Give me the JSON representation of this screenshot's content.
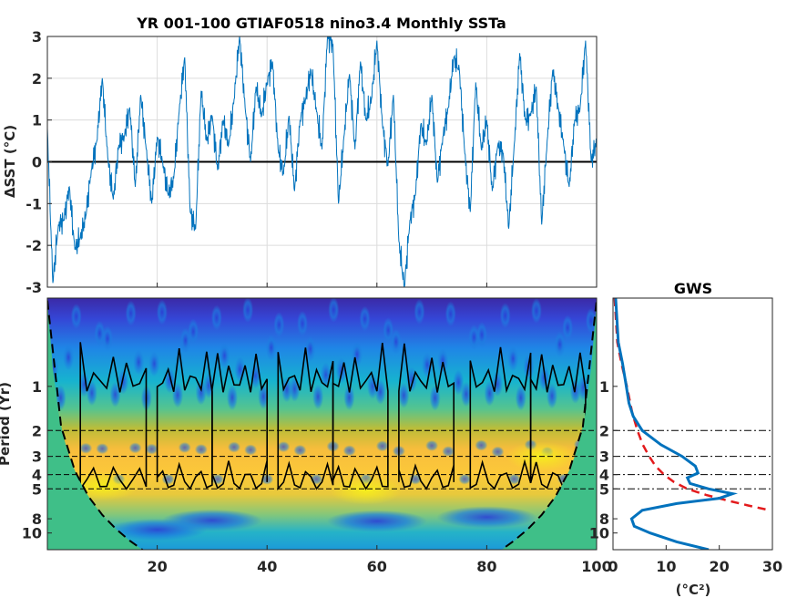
{
  "chart_data": [
    {
      "type": "line",
      "title": "YR 001-100 GTIAF0518 nino3.4 Monthly SSTa",
      "ylabel": "ΔSST (°C)",
      "xlim": [
        0,
        100
      ],
      "ylim": [
        -3,
        3
      ],
      "yticks": [
        "3",
        "2",
        "1",
        "0",
        "-1",
        "-2",
        "-3"
      ],
      "grid": true,
      "series": [
        {
          "color": "#0072bd",
          "x": [
            0,
            1,
            2,
            3,
            4,
            5,
            6,
            7,
            8,
            9,
            10,
            11,
            12,
            13,
            14,
            15,
            16,
            17,
            18,
            19,
            20,
            21,
            22,
            23,
            24,
            25,
            26,
            27,
            28,
            29,
            30,
            31,
            32,
            33,
            34,
            35,
            36,
            37,
            38,
            39,
            40,
            41,
            42,
            43,
            44,
            45,
            46,
            47,
            48,
            49,
            50,
            51,
            52,
            53,
            54,
            55,
            56,
            57,
            58,
            59,
            60,
            61,
            62,
            63,
            64,
            65,
            66,
            67,
            68,
            69,
            70,
            71,
            72,
            73,
            74,
            75,
            76,
            77,
            78,
            79,
            80,
            81,
            82,
            83,
            84,
            85,
            86,
            87,
            88,
            89,
            90,
            91,
            92,
            93,
            94,
            95,
            96,
            97,
            98,
            99,
            100
          ],
          "y": [
            0.8,
            -2.9,
            -1.5,
            -1.4,
            -0.6,
            -2.1,
            -1.8,
            -1.3,
            -0.2,
            0.5,
            2.0,
            0.1,
            -0.9,
            0.4,
            0.6,
            1.3,
            -0.6,
            1.6,
            0.3,
            -1.0,
            0.6,
            0.0,
            -0.8,
            -0.4,
            1.2,
            2.5,
            -1.2,
            -1.6,
            1.7,
            0.5,
            1.1,
            -0.2,
            1.0,
            0.4,
            1.5,
            3.0,
            1.3,
            0.0,
            1.8,
            1.1,
            1.9,
            2.4,
            0.3,
            -0.3,
            1.1,
            -0.7,
            1.0,
            1.5,
            2.2,
            1.2,
            0.3,
            3.0,
            2.8,
            -1.0,
            0.6,
            2.1,
            0.3,
            2.4,
            1.0,
            1.5,
            2.9,
            0.9,
            -0.1,
            1.6,
            -1.9,
            -3.0,
            -1.4,
            -0.8,
            0.9,
            0.4,
            1.6,
            -0.5,
            0.6,
            1.3,
            2.5,
            2.2,
            0.2,
            -1.2,
            1.9,
            0.3,
            1.0,
            -0.7,
            0.4,
            0.2,
            -1.6,
            0.4,
            2.6,
            1.0,
            1.1,
            1.8,
            -1.5,
            0.5,
            2.2,
            1.3,
            0.4,
            -0.6,
            1.0,
            1.3,
            2.9,
            0.0,
            0.5
          ]
        }
      ],
      "zero_line": 0
    },
    {
      "type": "heatmap",
      "title": "",
      "ylabel": "Period (Yr)",
      "xlim": [
        0,
        100
      ],
      "xticks": [
        "20",
        "40",
        "60",
        "80",
        "100"
      ],
      "yticks": [
        "1",
        "2",
        "3",
        "4",
        "5",
        "8",
        "10"
      ],
      "yticks_values": [
        1,
        2,
        3,
        4,
        5,
        8,
        10
      ],
      "ylim": [
        0.25,
        13
      ],
      "log_y": true,
      "reference_periods": [
        2,
        3,
        4,
        5
      ],
      "colormap": "parula",
      "cone_of_influence": true,
      "significance_contours": true
    },
    {
      "type": "line",
      "title": "GWS",
      "xlabel": "(°C²)",
      "xlim": [
        0,
        30
      ],
      "xticks": [
        "0",
        "10",
        "20",
        "30"
      ],
      "yticks": [
        "1",
        "2",
        "3",
        "4",
        "5",
        "8",
        "10"
      ],
      "log_y": true,
      "reference_periods": [
        2,
        3,
        4,
        5
      ],
      "series": [
        {
          "color": "#0072bd",
          "period": [
            0.25,
            0.5,
            0.7,
            1.0,
            1.3,
            1.6,
            2.0,
            2.5,
            3.0,
            3.5,
            3.9,
            4.2,
            4.6,
            5.0,
            5.4,
            5.8,
            6.3,
            7.0,
            8.0,
            9.0,
            10.0,
            11.5,
            13.0
          ],
          "power": [
            0.5,
            1.0,
            1.8,
            2.5,
            3.0,
            3.8,
            5.5,
            9.0,
            13.0,
            15.5,
            16.0,
            14.0,
            14.5,
            18.0,
            22.5,
            20.0,
            12.0,
            5.5,
            3.5,
            4.0,
            7.0,
            12.0,
            18.0
          ]
        },
        {
          "color": "#e31a1c",
          "style": "dashed",
          "period": [
            0.25,
            0.5,
            0.7,
            1.0,
            1.5,
            2.0,
            2.5,
            3.0,
            3.5,
            4.0,
            4.5,
            5.0,
            5.5,
            6.0,
            6.5,
            7.0
          ],
          "power": [
            0.3,
            0.8,
            1.6,
            2.6,
            3.6,
            4.6,
            5.6,
            6.8,
            8.0,
            9.6,
            11.5,
            14.0,
            17.5,
            21.5,
            25.5,
            29.5
          ]
        }
      ]
    }
  ]
}
